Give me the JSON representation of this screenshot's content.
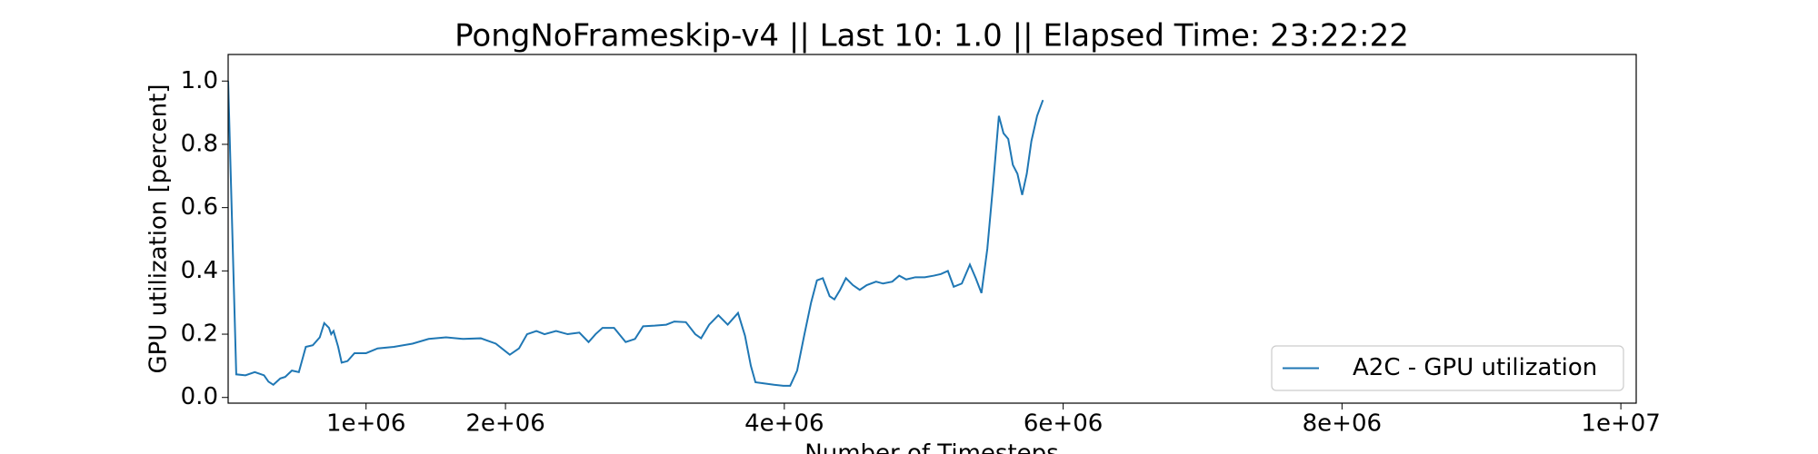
{
  "chart_data": {
    "type": "line",
    "title": "PongNoFrameskip-v4 || Last 10: 1.0 || Elapsed Time: 23:22:22",
    "x_label": "Number of Timesteps",
    "y_label": "GPU utilization [percent]",
    "x": [
      11000,
      69000,
      135000,
      202000,
      268000,
      300000,
      335000,
      385000,
      420000,
      468000,
      518000,
      568000,
      618000,
      668000,
      700000,
      734000,
      750000,
      767000,
      800000,
      825000,
      867000,
      917000,
      1000000,
      1083000,
      1200000,
      1333000,
      1449000,
      1574000,
      1698000,
      1823000,
      1931000,
      2031000,
      2097000,
      2155000,
      2222000,
      2280000,
      2363000,
      2446000,
      2530000,
      2596000,
      2646000,
      2696000,
      2779000,
      2862000,
      2929000,
      2987000,
      3070000,
      3153000,
      3211000,
      3294000,
      3361000,
      3403000,
      3461000,
      3527000,
      3594000,
      3668000,
      3718000,
      3760000,
      3793000,
      3860000,
      3926000,
      3993000,
      4042000,
      4092000,
      4142000,
      4192000,
      4234000,
      4276000,
      4325000,
      4359000,
      4400000,
      4442000,
      4492000,
      4541000,
      4591000,
      4658000,
      4708000,
      4774000,
      4824000,
      4874000,
      4940000,
      5007000,
      5073000,
      5123000,
      5173000,
      5215000,
      5273000,
      5331000,
      5373000,
      5414000,
      5456000,
      5497000,
      5539000,
      5572000,
      5606000,
      5639000,
      5672000,
      5706000,
      5739000,
      5772000,
      5813000,
      5855000
    ],
    "series": [
      {
        "name": "A2C - GPU utilization",
        "color": "#1f77b4",
        "values": [
          1.0,
          0.073,
          0.07,
          0.08,
          0.07,
          0.05,
          0.04,
          0.06,
          0.065,
          0.085,
          0.08,
          0.16,
          0.165,
          0.19,
          0.235,
          0.22,
          0.2,
          0.21,
          0.16,
          0.11,
          0.115,
          0.14,
          0.14,
          0.155,
          0.16,
          0.17,
          0.185,
          0.19,
          0.185,
          0.187,
          0.17,
          0.135,
          0.155,
          0.2,
          0.21,
          0.2,
          0.21,
          0.2,
          0.205,
          0.175,
          0.2,
          0.22,
          0.22,
          0.175,
          0.185,
          0.225,
          0.227,
          0.23,
          0.24,
          0.238,
          0.2,
          0.187,
          0.23,
          0.26,
          0.23,
          0.267,
          0.195,
          0.1,
          0.048,
          0.044,
          0.04,
          0.037,
          0.037,
          0.085,
          0.195,
          0.3,
          0.37,
          0.377,
          0.32,
          0.31,
          0.34,
          0.377,
          0.355,
          0.34,
          0.355,
          0.366,
          0.36,
          0.366,
          0.385,
          0.373,
          0.38,
          0.38,
          0.385,
          0.39,
          0.4,
          0.35,
          0.36,
          0.42,
          0.377,
          0.33,
          0.47,
          0.67,
          0.89,
          0.835,
          0.817,
          0.735,
          0.707,
          0.64,
          0.707,
          0.81,
          0.89,
          0.94
        ]
      }
    ],
    "xlim": [
      11000,
      10110000
    ],
    "ylim": [
      -0.018,
      1.084
    ],
    "xticks": [
      {
        "value": 1000000,
        "label": "1e+06"
      },
      {
        "value": 2000000,
        "label": "2e+06"
      },
      {
        "value": 4000000,
        "label": "4e+06"
      },
      {
        "value": 6000000,
        "label": "6e+06"
      },
      {
        "value": 8000000,
        "label": "8e+06"
      },
      {
        "value": 10000000,
        "label": "1e+07"
      }
    ],
    "yticks": [
      {
        "value": 0,
        "label": "0.0"
      },
      {
        "value": 0.2,
        "label": "0.2"
      },
      {
        "value": 0.4,
        "label": "0.4"
      },
      {
        "value": 0.6,
        "label": "0.6"
      },
      {
        "value": 0.8,
        "label": "0.8"
      },
      {
        "value": 1,
        "label": "1.0"
      }
    ],
    "legend": "lower right"
  }
}
